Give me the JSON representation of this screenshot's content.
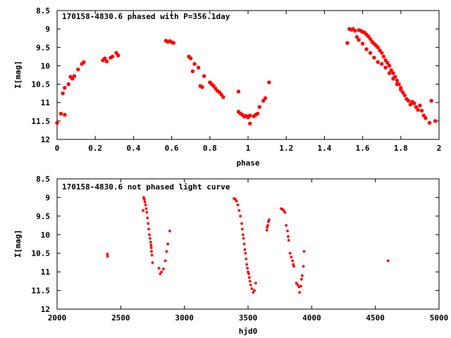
{
  "chart_data": [
    {
      "type": "scatter",
      "title": "170158-4830.6 phased with P=356.1day",
      "xlabel": "phase",
      "ylabel": "I[mag]",
      "xlim": [
        0,
        2
      ],
      "ylim": [
        8.5,
        12
      ],
      "y_inverted": true,
      "x_ticks": [
        "0",
        "0.2",
        "0.4",
        "0.6",
        "0.8",
        "1",
        "1.2",
        "1.4",
        "1.6",
        "1.8",
        "2"
      ],
      "y_ticks": [
        "8.5",
        "9",
        "9.5",
        "10",
        "10.5",
        "11",
        "11.5",
        "12"
      ],
      "marker_color": "#ff0000",
      "series": [
        {
          "points": [
            [
              0.0,
              11.55
            ],
            [
              0.02,
              11.3
            ],
            [
              0.03,
              10.75
            ],
            [
              0.04,
              11.33
            ],
            [
              0.04,
              10.6
            ],
            [
              0.06,
              10.5
            ],
            [
              0.07,
              10.3
            ],
            [
              0.08,
              10.35
            ],
            [
              0.09,
              10.28
            ],
            [
              0.11,
              10.1
            ],
            [
              0.13,
              9.95
            ],
            [
              0.14,
              9.9
            ],
            [
              0.24,
              9.85
            ],
            [
              0.25,
              9.8
            ],
            [
              0.26,
              9.88
            ],
            [
              0.28,
              9.78
            ],
            [
              0.29,
              9.75
            ],
            [
              0.31,
              9.65
            ],
            [
              0.32,
              9.72
            ],
            [
              0.57,
              9.32
            ],
            [
              0.58,
              9.35
            ],
            [
              0.59,
              9.33
            ],
            [
              0.6,
              9.36
            ],
            [
              0.61,
              9.38
            ],
            [
              0.69,
              9.75
            ],
            [
              0.7,
              9.8
            ],
            [
              0.71,
              10.15
            ],
            [
              0.72,
              9.95
            ],
            [
              0.74,
              10.05
            ],
            [
              0.75,
              10.55
            ],
            [
              0.76,
              10.58
            ],
            [
              0.77,
              10.28
            ],
            [
              0.8,
              10.45
            ],
            [
              0.81,
              10.5
            ],
            [
              0.82,
              10.55
            ],
            [
              0.83,
              10.62
            ],
            [
              0.84,
              10.68
            ],
            [
              0.85,
              10.72
            ],
            [
              0.86,
              10.78
            ],
            [
              0.87,
              10.85
            ],
            [
              0.95,
              10.7
            ],
            [
              0.95,
              11.25
            ],
            [
              0.96,
              11.3
            ],
            [
              0.97,
              11.33
            ],
            [
              0.98,
              11.38
            ],
            [
              0.99,
              11.36
            ],
            [
              1.0,
              11.4
            ],
            [
              1.01,
              11.35
            ],
            [
              1.01,
              11.57
            ],
            [
              1.03,
              11.37
            ],
            [
              1.04,
              11.33
            ],
            [
              1.05,
              11.3
            ],
            [
              1.06,
              11.12
            ],
            [
              1.08,
              10.95
            ],
            [
              1.09,
              10.88
            ],
            [
              1.11,
              10.45
            ],
            [
              1.52,
              9.38
            ],
            [
              1.53,
              9.0
            ],
            [
              1.54,
              9.02
            ],
            [
              1.55,
              9.0
            ],
            [
              1.56,
              9.05
            ],
            [
              1.57,
              9.22
            ],
            [
              1.58,
              9.03
            ],
            [
              1.58,
              9.3
            ],
            [
              1.59,
              9.05
            ],
            [
              1.6,
              9.08
            ],
            [
              1.6,
              9.4
            ],
            [
              1.61,
              9.1
            ],
            [
              1.62,
              9.15
            ],
            [
              1.62,
              9.55
            ],
            [
              1.63,
              9.2
            ],
            [
              1.64,
              9.27
            ],
            [
              1.64,
              9.65
            ],
            [
              1.65,
              9.35
            ],
            [
              1.66,
              9.4
            ],
            [
              1.66,
              9.78
            ],
            [
              1.67,
              9.45
            ],
            [
              1.68,
              9.5
            ],
            [
              1.68,
              9.9
            ],
            [
              1.69,
              9.58
            ],
            [
              1.7,
              9.65
            ],
            [
              1.7,
              9.95
            ],
            [
              1.71,
              9.75
            ],
            [
              1.72,
              9.85
            ],
            [
              1.72,
              10.05
            ],
            [
              1.73,
              9.92
            ],
            [
              1.74,
              10.0
            ],
            [
              1.74,
              10.2
            ],
            [
              1.75,
              10.12
            ],
            [
              1.76,
              10.2
            ],
            [
              1.76,
              10.35
            ],
            [
              1.77,
              10.3
            ],
            [
              1.78,
              10.4
            ],
            [
              1.78,
              10.5
            ],
            [
              1.79,
              10.5
            ],
            [
              1.8,
              10.6
            ],
            [
              1.8,
              10.65
            ],
            [
              1.81,
              10.72
            ],
            [
              1.82,
              10.8
            ],
            [
              1.83,
              10.9
            ],
            [
              1.84,
              10.95
            ],
            [
              1.85,
              11.05
            ],
            [
              1.86,
              10.98
            ],
            [
              1.87,
              11.02
            ],
            [
              1.88,
              11.12
            ],
            [
              1.89,
              11.2
            ],
            [
              1.9,
              11.08
            ],
            [
              1.91,
              11.22
            ],
            [
              1.92,
              11.35
            ],
            [
              1.93,
              11.42
            ],
            [
              1.95,
              11.55
            ],
            [
              1.96,
              10.95
            ],
            [
              1.98,
              11.5
            ]
          ]
        }
      ]
    },
    {
      "type": "scatter",
      "title": "170158-4830.6 not phased light curve",
      "xlabel": "hjd0",
      "ylabel": "I[mag]",
      "xlim": [
        2000,
        5000
      ],
      "ylim": [
        8.5,
        12
      ],
      "y_inverted": true,
      "x_ticks": [
        "2000",
        "2500",
        "3000",
        "3500",
        "4000",
        "4500",
        "5000"
      ],
      "y_ticks": [
        "8.5",
        "9",
        "9.5",
        "10",
        "10.5",
        "11",
        "11.5",
        "12"
      ],
      "marker_color": "#ff0000",
      "series": [
        {
          "points": [
            [
              2395,
              10.52
            ],
            [
              2397,
              10.58
            ],
            [
              2675,
              9.35
            ],
            [
              2680,
              9.0
            ],
            [
              2685,
              9.05
            ],
            [
              2690,
              9.12
            ],
            [
              2695,
              9.2
            ],
            [
              2700,
              9.3
            ],
            [
              2705,
              9.4
            ],
            [
              2710,
              9.55
            ],
            [
              2715,
              9.7
            ],
            [
              2720,
              9.85
            ],
            [
              2725,
              10.0
            ],
            [
              2730,
              10.1
            ],
            [
              2735,
              10.2
            ],
            [
              2738,
              10.28
            ],
            [
              2740,
              10.35
            ],
            [
              2742,
              10.45
            ],
            [
              2745,
              10.55
            ],
            [
              2750,
              10.75
            ],
            [
              2800,
              10.9
            ],
            [
              2810,
              11.05
            ],
            [
              2820,
              11.0
            ],
            [
              2835,
              10.92
            ],
            [
              2850,
              10.7
            ],
            [
              2860,
              10.45
            ],
            [
              2870,
              10.25
            ],
            [
              2885,
              9.9
            ],
            [
              3390,
              9.03
            ],
            [
              3400,
              9.05
            ],
            [
              3410,
              9.1
            ],
            [
              3420,
              9.2
            ],
            [
              3430,
              9.35
            ],
            [
              3440,
              9.5
            ],
            [
              3450,
              9.7
            ],
            [
              3455,
              9.85
            ],
            [
              3460,
              10.0
            ],
            [
              3465,
              10.1
            ],
            [
              3470,
              10.25
            ],
            [
              3475,
              10.4
            ],
            [
              3480,
              10.5
            ],
            [
              3485,
              10.65
            ],
            [
              3490,
              10.8
            ],
            [
              3495,
              10.9
            ],
            [
              3500,
              11.0
            ],
            [
              3505,
              11.05
            ],
            [
              3510,
              11.15
            ],
            [
              3515,
              11.25
            ],
            [
              3520,
              11.35
            ],
            [
              3530,
              11.45
            ],
            [
              3540,
              11.55
            ],
            [
              3550,
              11.5
            ],
            [
              3560,
              11.3
            ],
            [
              3648,
              9.88
            ],
            [
              3650,
              9.8
            ],
            [
              3655,
              9.75
            ],
            [
              3660,
              9.65
            ],
            [
              3665,
              9.6
            ],
            [
              3760,
              9.3
            ],
            [
              3770,
              9.32
            ],
            [
              3780,
              9.35
            ],
            [
              3790,
              9.4
            ],
            [
              3800,
              9.75
            ],
            [
              3810,
              9.9
            ],
            [
              3815,
              10.05
            ],
            [
              3820,
              10.15
            ],
            [
              3830,
              10.5
            ],
            [
              3840,
              10.6
            ],
            [
              3850,
              10.7
            ],
            [
              3855,
              10.8
            ],
            [
              3860,
              10.85
            ],
            [
              3880,
              11.3
            ],
            [
              3890,
              11.35
            ],
            [
              3900,
              11.4
            ],
            [
              3905,
              11.55
            ],
            [
              3915,
              11.38
            ],
            [
              3920,
              11.2
            ],
            [
              3925,
              11.1
            ],
            [
              3935,
              10.85
            ],
            [
              3940,
              10.45
            ],
            [
              4600,
              10.7
            ]
          ]
        }
      ]
    }
  ]
}
